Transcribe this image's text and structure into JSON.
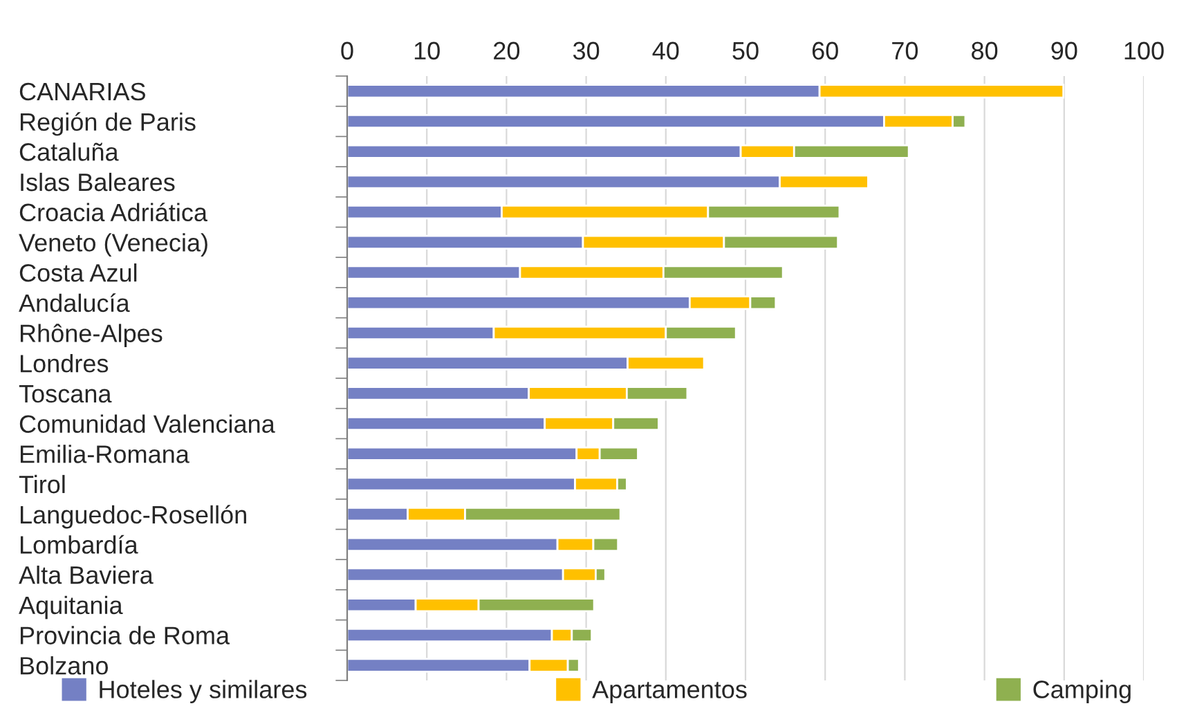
{
  "chart_data": {
    "type": "bar",
    "orientation": "horizontal",
    "stacked": true,
    "categories": [
      "CANARIAS",
      "Región de Paris",
      "Cataluña",
      "Islas Baleares",
      "Croacia Adriática",
      "Veneto (Venecia)",
      "Costa Azul",
      "Andalucía",
      "Rhône-Alpes",
      "Londres",
      "Toscana",
      "Comunidad Valenciana",
      "Emilia-Romana",
      "Tirol",
      "Languedoc-Rosellón",
      "Lombardía",
      "Alta Baviera",
      "Aquitania",
      "Provincia de Roma",
      "Bolzano"
    ],
    "series": [
      {
        "name": "Hoteles y similares",
        "color": "#7480c4",
        "values": [
          59.3,
          67.4,
          49.4,
          54.3,
          19.4,
          29.6,
          21.7,
          43.0,
          18.4,
          35.2,
          22.8,
          24.8,
          28.8,
          28.6,
          7.6,
          26.4,
          27.1,
          8.6,
          25.7,
          22.9
        ]
      },
      {
        "name": "Apartamentos",
        "color": "#ffc000",
        "values": [
          30.6,
          8.6,
          6.7,
          11.1,
          25.9,
          17.7,
          18.0,
          7.6,
          21.6,
          9.6,
          12.3,
          8.6,
          2.9,
          5.3,
          7.2,
          4.5,
          4.1,
          7.9,
          2.5,
          4.8
        ]
      },
      {
        "name": "Camping",
        "color": "#8fb050",
        "values": [
          null,
          1.6,
          14.4,
          null,
          16.5,
          14.3,
          15.0,
          3.2,
          8.8,
          null,
          7.6,
          5.7,
          4.8,
          1.2,
          19.5,
          3.1,
          1.2,
          14.5,
          2.5,
          1.4
        ]
      }
    ],
    "xlim": [
      0,
      100
    ],
    "xticks": [
      0,
      10,
      20,
      30,
      40,
      50,
      60,
      70,
      80,
      90,
      100
    ],
    "grid": "x",
    "legend": "bottom"
  }
}
